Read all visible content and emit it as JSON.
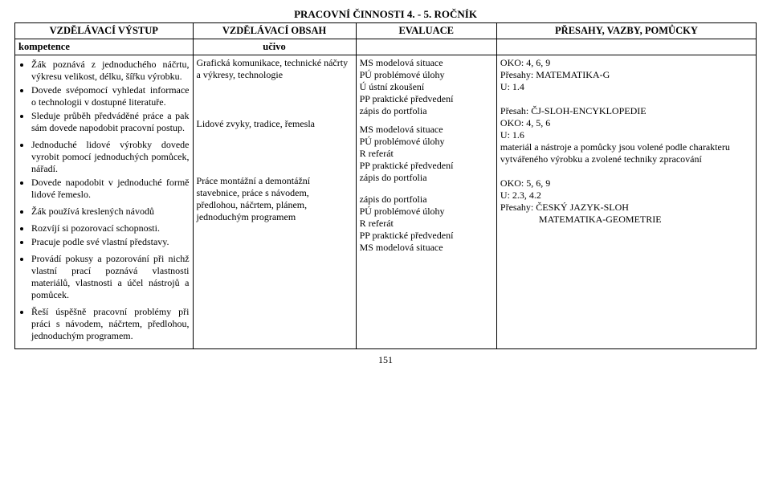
{
  "page_title": "PRACOVNÍ  ČINNOSTI  4.  -  5. ROČNÍK",
  "headers": {
    "c1a": "VZDĚLÁVACÍ VÝSTUP",
    "c1b": "kompetence",
    "c2a": "VZDĚLÁVACÍ OBSAH",
    "c2b": "učivo",
    "c3a": "EVALUACE",
    "c3b": "",
    "c4a": "PŘESAHY, VAZBY, POMŮCKY",
    "c4b": ""
  },
  "col1_groups": [
    {
      "items": [
        "Žák poznává z jednoduchého náčrtu, výkresu velikost, délku, šířku výrobku.",
        "Dovede svépomocí vyhledat informace o technologii v dostupné literatuře.",
        "Sleduje průběh předváděné práce a pak sám dovede napodobit pracovní postup."
      ]
    },
    {
      "items": [
        "Jednoduché lidové výrobky dovede vyrobit pomocí jednoduchých pomůcek, nářadí.",
        "Dovede napodobit v jednoduché formě lidové řemeslo."
      ]
    },
    {
      "items": [
        "Žák používá kreslených návodů"
      ]
    },
    {
      "items": [
        "Rozvíjí si pozorovací schopnosti.",
        "Pracuje podle své vlastní představy."
      ]
    },
    {
      "items": [
        "Provádí pokusy a pozorování při nichž vlastní prací poznává vlastnosti materiálů, vlastnosti a účel nástrojů a pomůcek."
      ]
    },
    {
      "items": [
        "Řeší úspěšně pracovní problémy při práci s návodem, náčrtem, předlohou, jednoduchým programem."
      ]
    }
  ],
  "col2_blocks": [
    "Grafická komunikace, technické náčrty a výkresy, technologie",
    "Lidové zvyky, tradice, řemesla",
    "Práce montážní a demontážní stavebnice, práce s návodem, předlohou, náčrtem, plánem, jednoduchým programem"
  ],
  "col3_blocks": [
    "MS modelová situace\nPÚ problémové úlohy\nÚ ústní zkoušení\nPP praktické předvedení\nzápis do portfolia",
    "MS modelová situace\nPÚ problémové úlohy\nR referát\nPP praktické předvedení\nzápis do portfolia",
    "zápis do portfolia\nPÚ problémové úlohy\nR referát\nPP praktické předvedení\nMS modelová situace"
  ],
  "col4_text": "OKO: 4, 6, 9\nPřesahy: MATEMATIKA-G\nU: 1.4\n\nPřesah: ČJ-SLOH-ENCYKLOPEDIE\nOKO: 4, 5, 6\nU: 1.6\nmateriál a nástroje a pomůcky jsou volené podle charakteru vytvářeného výrobku a zvolené techniky zpracování\n\nOKO: 5, 6, 9\nU: 2.3, 4.2\nPřesahy: ČESKÝ JAZYK-SLOH\n                MATEMATIKA-GEOMETRIE",
  "page_number": "151"
}
